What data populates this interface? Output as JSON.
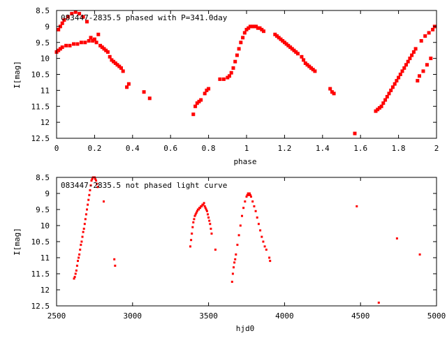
{
  "chart_data": [
    {
      "type": "scatter",
      "title": "083447-2835.5 phased with P=341.0day",
      "xlabel": "phase",
      "ylabel": "I[mag]",
      "xlim": [
        0,
        2
      ],
      "ylim": [
        12.5,
        8.5
      ],
      "y_inverted": true,
      "x_ticks": [
        "0",
        "0.2",
        "0.4",
        "0.6",
        "0.8",
        "1",
        "1.2",
        "1.4",
        "1.6",
        "1.8",
        "2"
      ],
      "y_ticks": [
        "8.5",
        "9",
        "9.5",
        "10",
        "10.5",
        "11",
        "11.5",
        "12",
        "12.5"
      ],
      "grid": false,
      "marker_color": "#ff0000",
      "series": [
        {
          "x": [
            0.0,
            0.01,
            0.01,
            0.02,
            0.02,
            0.03,
            0.03,
            0.04,
            0.05,
            0.06,
            0.07,
            0.08,
            0.09,
            0.1,
            0.11,
            0.12,
            0.13,
            0.14,
            0.15,
            0.16,
            0.17,
            0.18,
            0.19,
            0.2,
            0.21,
            0.22,
            0.23,
            0.24,
            0.25,
            0.26,
            0.27,
            0.28,
            0.29,
            0.3,
            0.31,
            0.32,
            0.33,
            0.34,
            0.35,
            0.37,
            0.38,
            0.46,
            0.49,
            0.72,
            0.73,
            0.74,
            0.75,
            0.76,
            0.78,
            0.79,
            0.8,
            0.86,
            0.88,
            0.9,
            0.91,
            0.92,
            0.93,
            0.94,
            0.95,
            0.96,
            0.97,
            0.98,
            0.99,
            1.0,
            1.01,
            1.02,
            1.03,
            1.04,
            1.05,
            1.06,
            1.07,
            1.08,
            1.09,
            1.15,
            1.16,
            1.17,
            1.18,
            1.19,
            1.2,
            1.21,
            1.22,
            1.23,
            1.24,
            1.25,
            1.26,
            1.27,
            1.29,
            1.3,
            1.31,
            1.32,
            1.33,
            1.34,
            1.35,
            1.36,
            1.44,
            1.45,
            1.46,
            1.57,
            1.68,
            1.69,
            1.7,
            1.71,
            1.72,
            1.73,
            1.74,
            1.75,
            1.76,
            1.77,
            1.78,
            1.79,
            1.8,
            1.81,
            1.82,
            1.83,
            1.84,
            1.85,
            1.86,
            1.87,
            1.88,
            1.89,
            1.9,
            1.91,
            1.92,
            1.93,
            1.94,
            1.95,
            1.96,
            1.97,
            1.98,
            1.99
          ],
          "y": [
            9.8,
            9.1,
            9.75,
            9.0,
            9.7,
            8.9,
            9.65,
            8.8,
            9.6,
            8.7,
            9.6,
            8.6,
            9.55,
            8.55,
            9.55,
            8.6,
            9.5,
            8.7,
            9.5,
            8.85,
            9.45,
            9.35,
            9.45,
            9.4,
            9.5,
            9.25,
            9.6,
            9.65,
            9.7,
            9.75,
            9.8,
            9.95,
            10.05,
            10.1,
            10.15,
            10.2,
            10.25,
            10.3,
            10.4,
            10.9,
            10.8,
            11.05,
            11.25,
            11.75,
            11.5,
            11.4,
            11.35,
            11.3,
            11.1,
            11.0,
            10.95,
            10.65,
            10.65,
            10.6,
            10.55,
            10.45,
            10.3,
            10.1,
            9.9,
            9.7,
            9.5,
            9.35,
            9.2,
            9.1,
            9.05,
            9.0,
            9.0,
            9.0,
            9.0,
            9.05,
            9.05,
            9.1,
            9.15,
            9.25,
            9.3,
            9.35,
            9.4,
            9.45,
            9.5,
            9.55,
            9.6,
            9.65,
            9.7,
            9.75,
            9.8,
            9.85,
            9.95,
            10.05,
            10.15,
            10.2,
            10.25,
            10.3,
            10.35,
            10.4,
            10.95,
            11.05,
            11.1,
            12.35,
            11.65,
            11.6,
            11.55,
            11.5,
            11.4,
            11.3,
            11.2,
            11.1,
            11.0,
            10.9,
            10.8,
            10.7,
            10.6,
            10.5,
            10.4,
            10.3,
            10.2,
            10.1,
            10.0,
            9.9,
            9.8,
            9.7,
            10.7,
            10.55,
            9.45,
            10.4,
            9.3,
            10.2,
            9.2,
            10.0,
            9.1,
            9.0
          ]
        }
      ]
    },
    {
      "type": "scatter",
      "title": "083447-2835.5 not phased light curve",
      "xlabel": "hjd0",
      "ylabel": "I[mag]",
      "xlim": [
        2500,
        5000
      ],
      "ylim": [
        12.5,
        8.5
      ],
      "y_inverted": true,
      "x_ticks": [
        "2500",
        "3000",
        "3500",
        "4000",
        "4500",
        "5000"
      ],
      "y_ticks": [
        "8.5",
        "9",
        "9.5",
        "10",
        "10.5",
        "11",
        "11.5",
        "12",
        "12.5"
      ],
      "grid": false,
      "marker_color": "#ff0000",
      "series": [
        {
          "x": [
            2615,
            2620,
            2625,
            2630,
            2635,
            2640,
            2645,
            2650,
            2655,
            2660,
            2665,
            2670,
            2675,
            2680,
            2685,
            2690,
            2695,
            2700,
            2705,
            2710,
            2715,
            2720,
            2725,
            2730,
            2735,
            2740,
            2745,
            2750,
            2755,
            2760,
            2765,
            2770,
            2810,
            2880,
            2885,
            3380,
            3385,
            3390,
            3395,
            3400,
            3405,
            3410,
            3415,
            3420,
            3425,
            3430,
            3435,
            3440,
            3445,
            3450,
            3455,
            3460,
            3465,
            3470,
            3475,
            3480,
            3485,
            3490,
            3495,
            3500,
            3505,
            3510,
            3515,
            3520,
            3545,
            3655,
            3660,
            3665,
            3670,
            3675,
            3680,
            3690,
            3700,
            3710,
            3720,
            3730,
            3740,
            3750,
            3755,
            3760,
            3765,
            3770,
            3775,
            3780,
            3790,
            3800,
            3810,
            3820,
            3830,
            3840,
            3850,
            3860,
            3870,
            3880,
            3900,
            3905,
            4475,
            4620,
            4740,
            4890
          ],
          "y": [
            11.65,
            11.6,
            11.5,
            11.4,
            11.25,
            11.1,
            11.0,
            10.9,
            10.75,
            10.6,
            10.5,
            10.35,
            10.2,
            10.1,
            9.95,
            9.8,
            9.65,
            9.5,
            9.35,
            9.2,
            9.05,
            8.9,
            8.75,
            8.6,
            8.55,
            8.5,
            8.5,
            8.5,
            8.55,
            8.6,
            8.7,
            8.8,
            9.25,
            11.05,
            11.25,
            10.65,
            10.45,
            10.25,
            10.05,
            9.9,
            9.8,
            9.7,
            9.65,
            9.6,
            9.55,
            9.5,
            9.5,
            9.45,
            9.45,
            9.4,
            9.4,
            9.35,
            9.35,
            9.3,
            9.4,
            9.45,
            9.5,
            9.55,
            9.65,
            9.75,
            9.85,
            9.95,
            10.1,
            10.25,
            10.75,
            11.75,
            11.5,
            11.3,
            11.15,
            11.05,
            10.9,
            10.6,
            10.3,
            10.0,
            9.7,
            9.45,
            9.25,
            9.1,
            9.05,
            9.0,
            9.05,
            9.0,
            9.05,
            9.1,
            9.25,
            9.4,
            9.55,
            9.75,
            9.95,
            10.15,
            10.35,
            10.5,
            10.65,
            10.75,
            11.0,
            11.1,
            9.4,
            12.4,
            10.4,
            10.9
          ]
        }
      ]
    }
  ]
}
